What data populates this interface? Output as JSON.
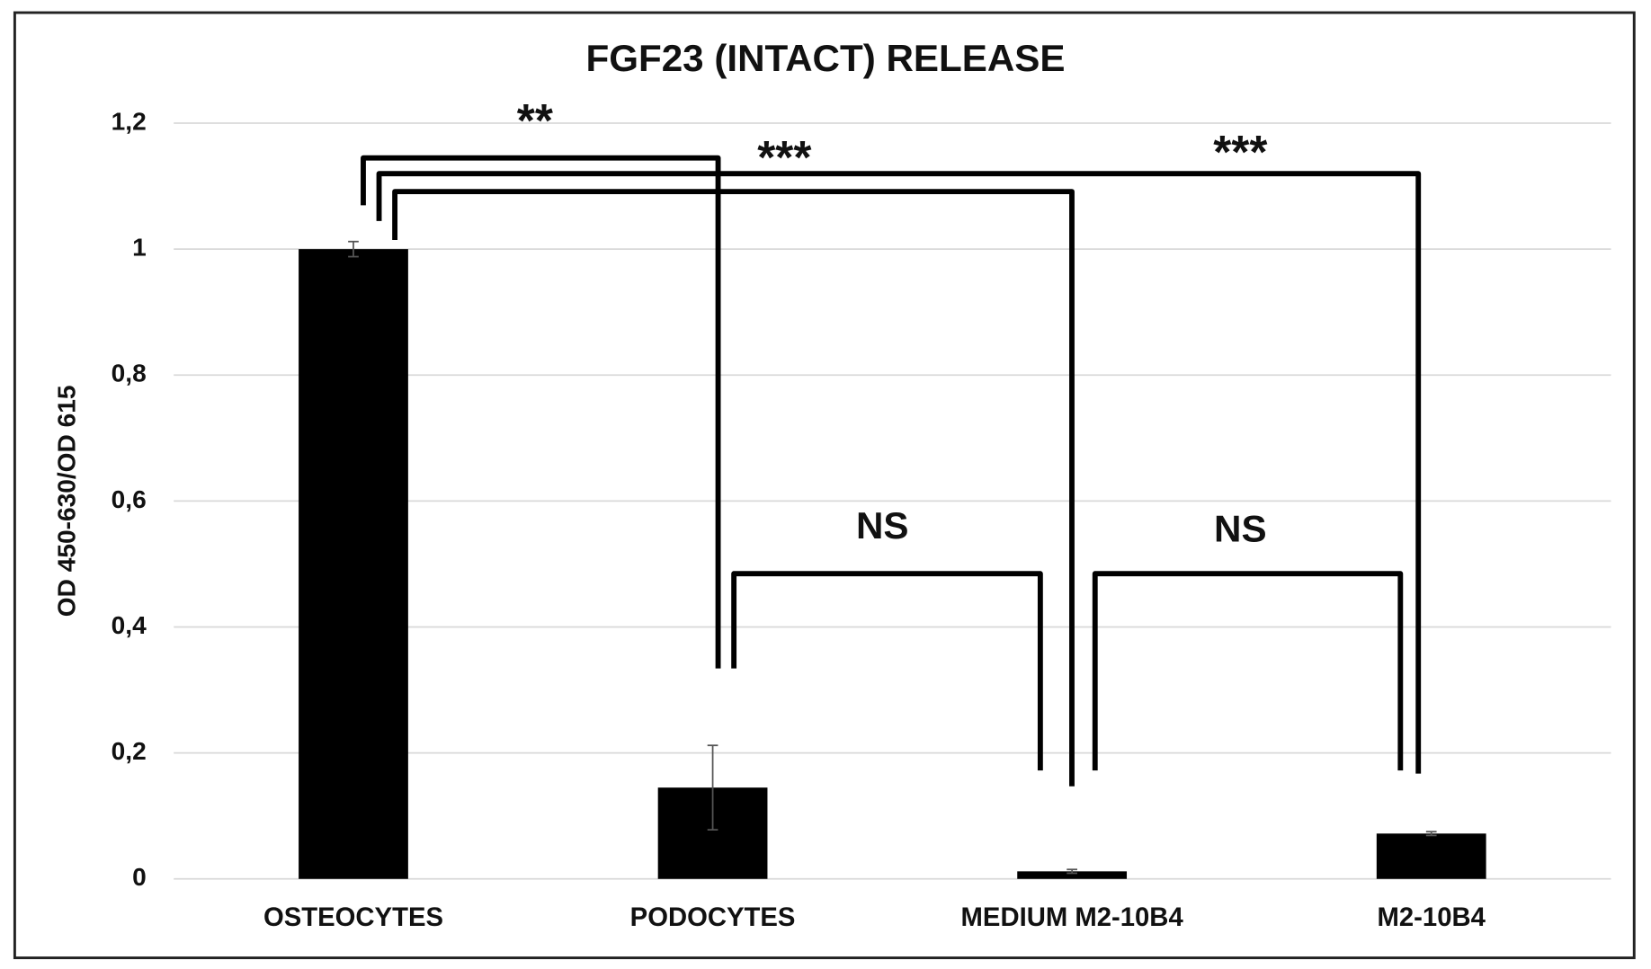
{
  "chart_data": {
    "type": "bar",
    "title": "FGF23 (INTACT) RELEASE",
    "y_label": "OD 450-630/OD 615",
    "categories": [
      "OSTEOCYTES",
      "PODOCYTES",
      "MEDIUM M2-10B4",
      "M2-10B4"
    ],
    "values": [
      1.0,
      0.145,
      0.012,
      0.072
    ],
    "errors": [
      0.012,
      0.067,
      0.003,
      0.003
    ],
    "color": "#000000",
    "ylim": [
      0,
      1.2
    ],
    "yticks": [
      0,
      {
        "value": 0.2,
        "label": "0,2"
      },
      {
        "value": 0.4,
        "label": "0,4"
      },
      {
        "value": 0.6,
        "label": "0,6"
      },
      {
        "value": 0.8,
        "label": "0,8"
      },
      1,
      {
        "value": 1.2,
        "label": "1,2"
      }
    ],
    "grid": true,
    "annotations": [
      "**",
      "***",
      "***",
      "NS",
      "NS"
    ]
  }
}
